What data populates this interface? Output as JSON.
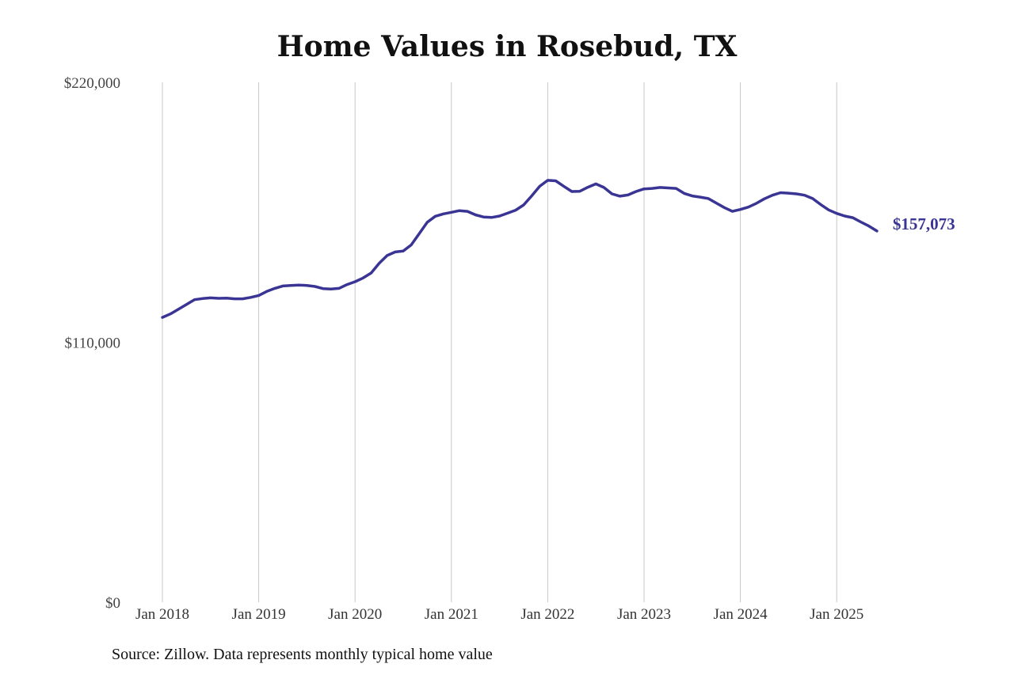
{
  "page": {
    "source": "Source: Zillow. Data represents monthly typical home value"
  },
  "chart_data": {
    "type": "line",
    "title": "Home Values in Rosebud, TX",
    "xlabel": "",
    "ylabel": "",
    "ylim": [
      0,
      220000
    ],
    "y_ticks": [
      0,
      110000,
      220000
    ],
    "y_tick_labels": [
      "$0",
      "$110,000",
      "$220,000"
    ],
    "x_ticks": [
      "2018-01",
      "2019-01",
      "2020-01",
      "2021-01",
      "2022-01",
      "2023-01",
      "2024-01",
      "2025-01"
    ],
    "x_tick_labels": [
      "Jan 2018",
      "Jan 2019",
      "Jan 2020",
      "Jan 2021",
      "Jan 2022",
      "Jan 2023",
      "Jan 2024",
      "Jan 2025"
    ],
    "grid": "vertical",
    "line_color": "#3a3594",
    "end_label": "$157,073",
    "series": [
      {
        "x": [
          "2018-01",
          "2018-02",
          "2018-03",
          "2018-04",
          "2018-05",
          "2018-06",
          "2018-07",
          "2018-08",
          "2018-09",
          "2018-10",
          "2018-11",
          "2018-12",
          "2019-01",
          "2019-02",
          "2019-03",
          "2019-04",
          "2019-05",
          "2019-06",
          "2019-07",
          "2019-08",
          "2019-09",
          "2019-10",
          "2019-11",
          "2019-12",
          "2020-01",
          "2020-02",
          "2020-03",
          "2020-04",
          "2020-05",
          "2020-06",
          "2020-07",
          "2020-08",
          "2020-09",
          "2020-10",
          "2020-11",
          "2020-12",
          "2021-01",
          "2021-02",
          "2021-03",
          "2021-04",
          "2021-05",
          "2021-06",
          "2021-07",
          "2021-08",
          "2021-09",
          "2021-10",
          "2021-11",
          "2021-12",
          "2022-01",
          "2022-02",
          "2022-03",
          "2022-04",
          "2022-05",
          "2022-06",
          "2022-07",
          "2022-08",
          "2022-09",
          "2022-10",
          "2022-11",
          "2022-12",
          "2023-01",
          "2023-02",
          "2023-03",
          "2023-04",
          "2023-05",
          "2023-06",
          "2023-07",
          "2023-08",
          "2023-09",
          "2023-10",
          "2023-11",
          "2023-12",
          "2024-01",
          "2024-02",
          "2024-03",
          "2024-04",
          "2024-05",
          "2024-06",
          "2024-07",
          "2024-08",
          "2024-09",
          "2024-10",
          "2024-11",
          "2024-12",
          "2025-01",
          "2025-02",
          "2025-03",
          "2025-04",
          "2025-05",
          "2025-06"
        ],
        "values": [
          120500,
          122000,
          124000,
          126000,
          128000,
          128500,
          128800,
          128600,
          128700,
          128400,
          128400,
          129000,
          129800,
          131500,
          132800,
          133800,
          134000,
          134200,
          134000,
          133600,
          132700,
          132500,
          132800,
          134400,
          135600,
          137200,
          139300,
          143400,
          146700,
          148200,
          148600,
          151200,
          156000,
          160800,
          163300,
          164300,
          165000,
          165700,
          165400,
          163900,
          163000,
          162800,
          163400,
          164600,
          165900,
          168100,
          171900,
          176000,
          178500,
          178300,
          176000,
          173800,
          173900,
          175600,
          177000,
          175500,
          172800,
          171800,
          172300,
          173800,
          174900,
          175100,
          175500,
          175300,
          175100,
          173000,
          171900,
          171400,
          170800,
          168900,
          167000,
          165400,
          166200,
          167200,
          168800,
          170700,
          172200,
          173300,
          173100,
          172800,
          172200,
          170800,
          168300,
          166000,
          164500,
          163400,
          162700,
          160900,
          159200,
          157073
        ]
      }
    ]
  }
}
